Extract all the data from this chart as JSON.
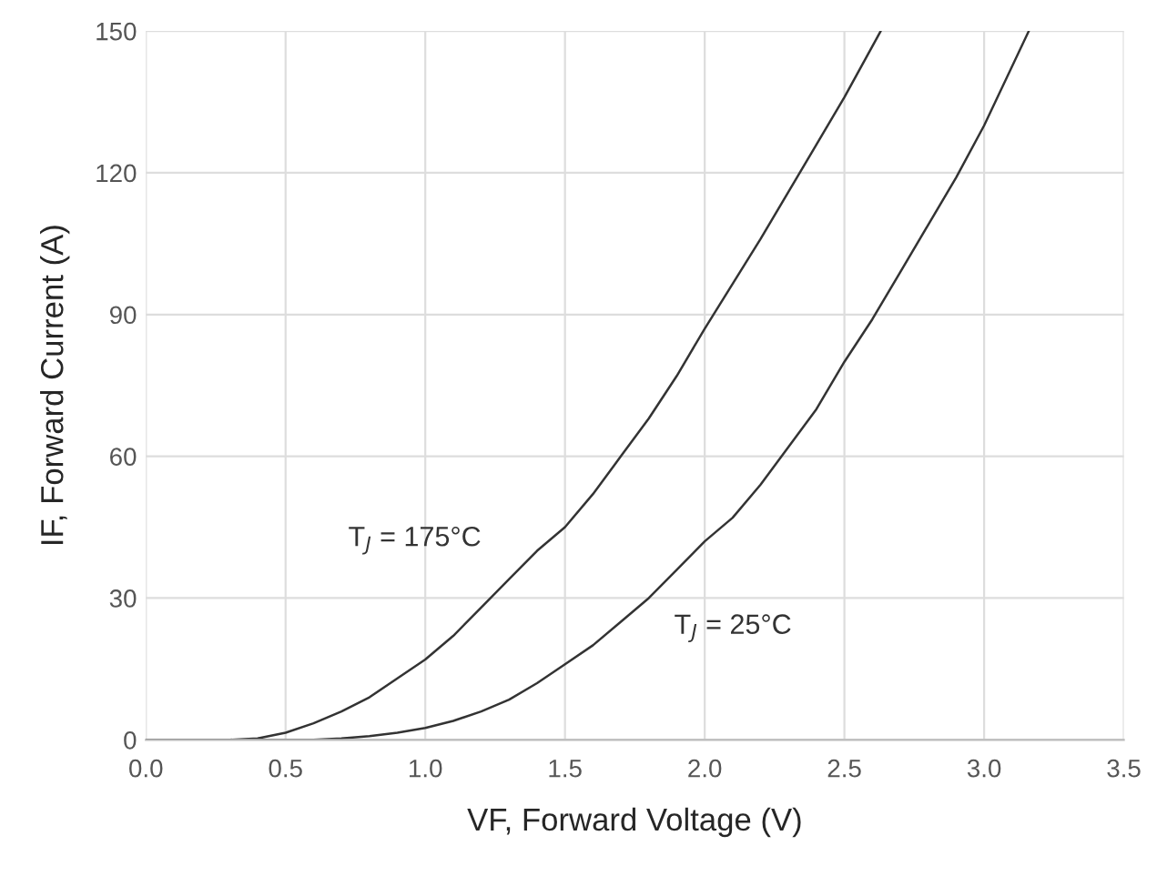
{
  "chart_data": {
    "type": "line",
    "xlabel": "VF, Forward Voltage (V)",
    "ylabel": "IF, Forward Current (A)",
    "xlim": [
      0,
      3.5
    ],
    "xticks": [
      {
        "value": 0,
        "label": "0.0"
      },
      0.5,
      {
        "value": 1,
        "label": "1.0"
      },
      1.5,
      {
        "value": 2,
        "label": "2.0"
      },
      2.5,
      {
        "value": 3,
        "label": "3.0"
      },
      3.5
    ],
    "ylim": [
      0,
      150
    ],
    "yticks": [
      0,
      30,
      60,
      90,
      120,
      150
    ],
    "grid": true,
    "legend": false,
    "marker": "none",
    "line_style": "solid",
    "series": [
      {
        "name": "T$_{J}$ = 175°C",
        "color": "#333333",
        "x": [
          0,
          0.3,
          0.4,
          0.5,
          0.6,
          0.7,
          0.8,
          0.9,
          1.0,
          1.1,
          1.2,
          1.3,
          1.4,
          1.5,
          1.6,
          1.7,
          1.8,
          1.9,
          2.0,
          2.2,
          2.4,
          2.5,
          2.63
        ],
        "values": [
          0,
          0,
          0.3,
          1.5,
          3.5,
          6,
          9,
          13,
          17,
          22,
          28,
          34,
          40,
          45,
          52,
          60,
          68,
          77,
          87,
          106,
          126,
          136,
          150
        ]
      },
      {
        "name": "T$_{J}$ = 25°C",
        "color": "#333333",
        "x": [
          0,
          0.6,
          0.7,
          0.8,
          0.9,
          1.0,
          1.1,
          1.2,
          1.3,
          1.4,
          1.5,
          1.6,
          1.7,
          1.8,
          1.9,
          2.0,
          2.1,
          2.2,
          2.3,
          2.4,
          2.5,
          2.6,
          2.7,
          2.8,
          2.9,
          3.0,
          3.16
        ],
        "values": [
          0,
          0,
          0.3,
          0.8,
          1.5,
          2.5,
          4,
          6,
          8.5,
          12,
          16,
          20,
          25,
          30,
          36,
          42,
          47,
          54,
          62,
          70,
          80,
          89,
          99,
          109,
          119,
          130,
          150
        ]
      }
    ]
  }
}
